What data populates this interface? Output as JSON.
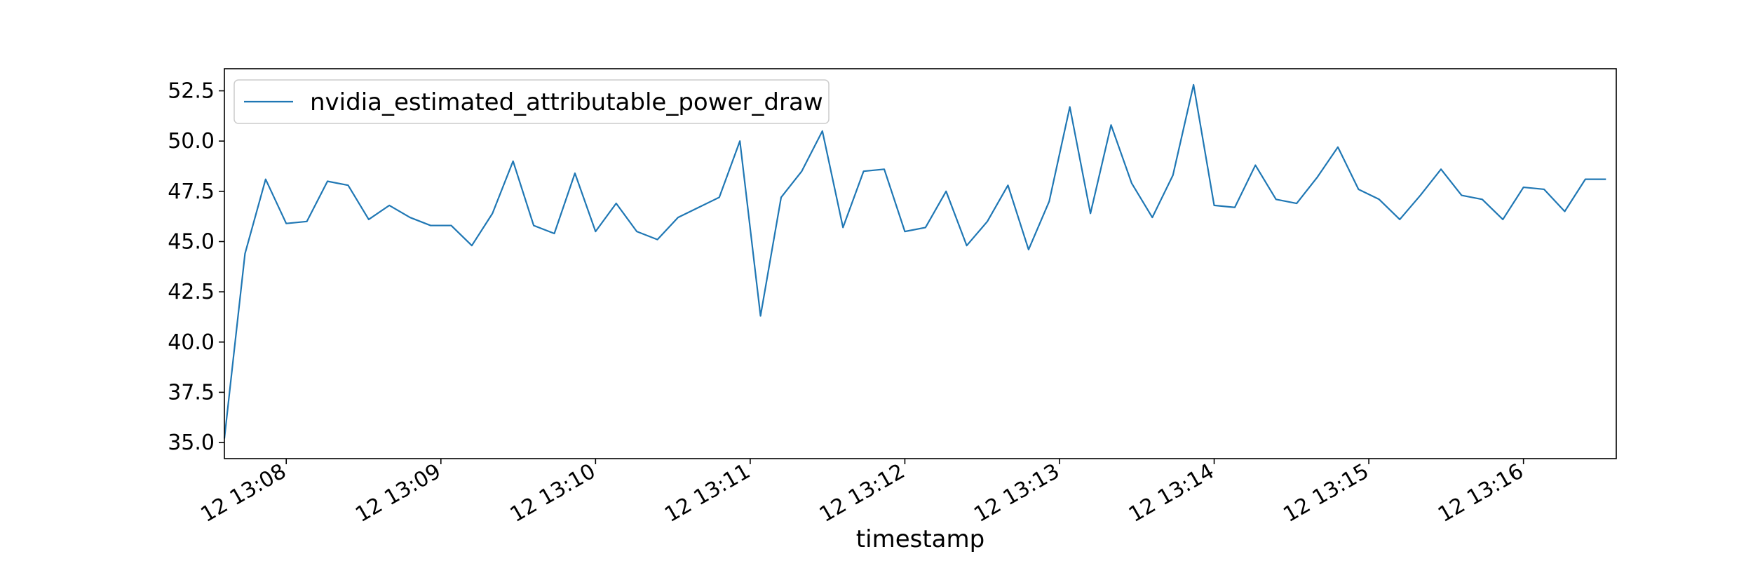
{
  "chart_data": {
    "type": "line",
    "xlabel": "timestamp",
    "ylabel": "",
    "title": "",
    "x_range": [
      "12 13:07:36",
      "12 13:16:36"
    ],
    "x_tick_labels": [
      "12 13:08",
      "12 13:09",
      "12 13:10",
      "12 13:11",
      "12 13:12",
      "12 13:13",
      "12 13:14",
      "12 13:15",
      "12 13:16"
    ],
    "ylim": [
      34.2,
      53.6
    ],
    "y_ticks": [
      "35.0",
      "37.5",
      "40.0",
      "42.5",
      "45.0",
      "47.5",
      "50.0",
      "52.5"
    ],
    "grid": false,
    "legend_position": "top-left",
    "color": "#1f77b4",
    "series": [
      {
        "name": "nvidia_estimated_attributable_power_draw",
        "x": [
          "12 13:07:36",
          "12 13:07:44",
          "12 13:07:52",
          "12 13:08:00",
          "12 13:08:08",
          "12 13:08:16",
          "12 13:08:24",
          "12 13:08:32",
          "12 13:08:40",
          "12 13:08:48",
          "12 13:08:56",
          "12 13:09:04",
          "12 13:09:12",
          "12 13:09:20",
          "12 13:09:28",
          "12 13:09:36",
          "12 13:09:44",
          "12 13:09:52",
          "12 13:10:00",
          "12 13:10:08",
          "12 13:10:16",
          "12 13:10:24",
          "12 13:10:32",
          "12 13:10:40",
          "12 13:10:48",
          "12 13:10:56",
          "12 13:11:04",
          "12 13:11:12",
          "12 13:11:20",
          "12 13:11:28",
          "12 13:11:36",
          "12 13:11:44",
          "12 13:11:52",
          "12 13:12:00",
          "12 13:12:08",
          "12 13:12:16",
          "12 13:12:24",
          "12 13:12:32",
          "12 13:12:40",
          "12 13:12:48",
          "12 13:12:56",
          "12 13:13:04",
          "12 13:13:12",
          "12 13:13:20",
          "12 13:13:28",
          "12 13:13:36",
          "12 13:13:44",
          "12 13:13:52",
          "12 13:14:00",
          "12 13:14:08",
          "12 13:14:16",
          "12 13:14:24",
          "12 13:14:32",
          "12 13:14:40",
          "12 13:14:48",
          "12 13:14:56",
          "12 13:15:04",
          "12 13:15:12",
          "12 13:15:20",
          "12 13:15:28",
          "12 13:15:36",
          "12 13:15:44",
          "12 13:15:52",
          "12 13:16:00",
          "12 13:16:08",
          "12 13:16:16",
          "12 13:16:24",
          "12 13:16:32"
        ],
        "values": [
          35.2,
          44.4,
          48.1,
          45.9,
          46.0,
          48.0,
          47.8,
          46.1,
          46.8,
          46.2,
          45.8,
          45.8,
          44.8,
          46.4,
          49.0,
          45.8,
          45.4,
          48.4,
          45.5,
          46.9,
          45.5,
          45.1,
          46.2,
          46.7,
          47.2,
          50.0,
          41.3,
          47.2,
          48.5,
          50.5,
          45.7,
          48.5,
          48.6,
          45.5,
          45.7,
          47.5,
          44.8,
          46.0,
          47.8,
          44.6,
          47.0,
          51.7,
          46.4,
          50.8,
          47.9,
          46.2,
          48.3,
          52.8,
          46.8,
          46.7,
          48.8,
          47.1,
          46.9,
          48.2,
          49.7,
          47.6,
          47.1,
          46.1,
          47.3,
          48.6,
          47.3,
          47.1,
          46.1,
          47.7,
          47.6,
          46.5,
          48.1,
          48.1
        ]
      }
    ]
  }
}
